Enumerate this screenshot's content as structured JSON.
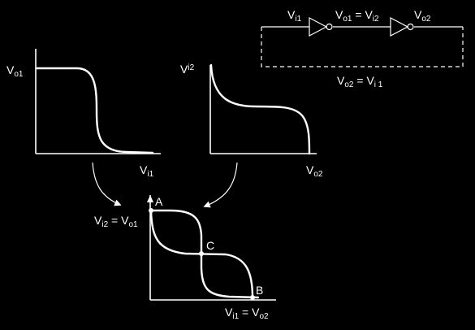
{
  "colors": {
    "background": "#000000",
    "foreground": "#ffffff"
  },
  "circuit": {
    "vi1": {
      "base": "V",
      "sub": "i1"
    },
    "vo1_eq_vi2": {
      "base1": "V",
      "sub1": "o1",
      "eq": " = ",
      "base2": "V",
      "sub2": "i2"
    },
    "vo2": {
      "base": "V",
      "sub": "o2"
    },
    "feedback": {
      "base1": "V",
      "sub1": "o2",
      "eq": " = ",
      "base2": "V",
      "sub2": "i 1"
    }
  },
  "plot1": {
    "ylabel": {
      "base": "V",
      "sub": "o1"
    },
    "xlabel": {
      "base": "V",
      "sub": "i1"
    }
  },
  "plot2": {
    "ylabel": {
      "base": "V",
      "sub": "i2"
    },
    "xlabel": {
      "base": "V",
      "sub": "o2"
    }
  },
  "plot3": {
    "ylabel": {
      "base1": "V",
      "sub1": "i2",
      "eq": " = ",
      "base2": "V",
      "sub2": "o1"
    },
    "xlabel": {
      "base1": "V",
      "sub1": "i1",
      "eq": " = ",
      "base2": "V",
      "sub2": "o2"
    },
    "points": {
      "a": "A",
      "b": "B",
      "c": "C"
    }
  }
}
